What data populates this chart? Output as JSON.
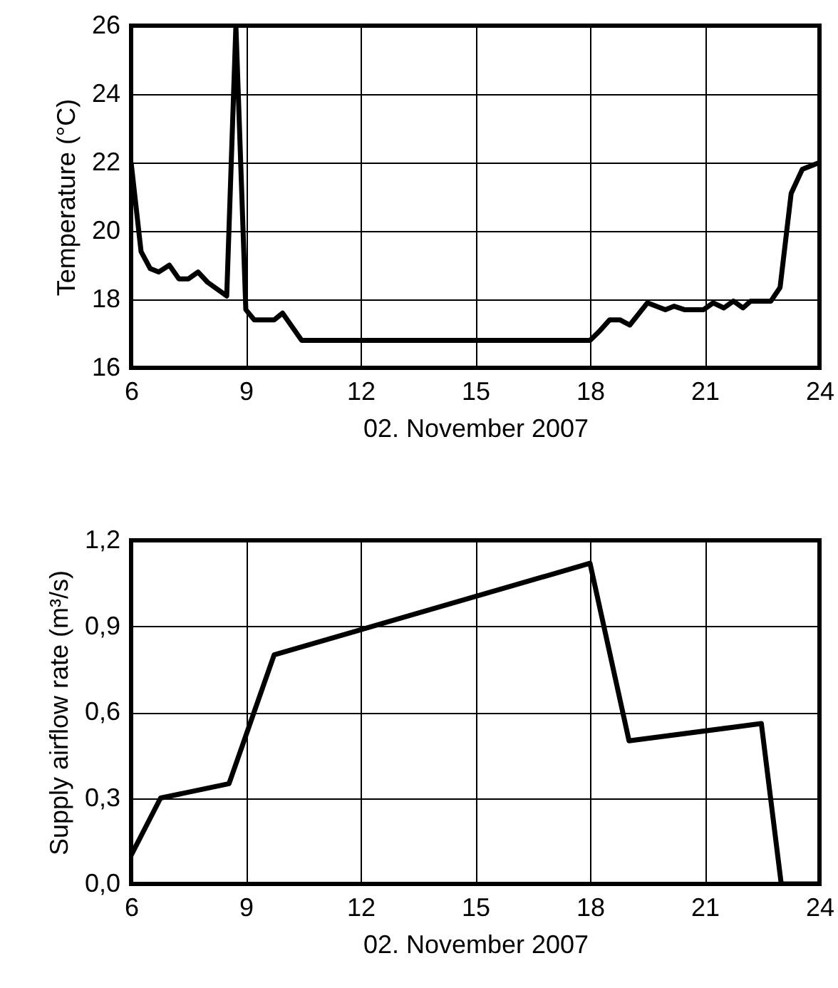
{
  "chart_data": [
    {
      "type": "line",
      "xlabel": "02. November 2007",
      "ylabel": "Temperature (°C)",
      "x": [
        6,
        6.26,
        6.5,
        6.72,
        7,
        7.25,
        7.5,
        7.75,
        8,
        8.5,
        8.74,
        9,
        9.22,
        9.74,
        9.96,
        10.46,
        18,
        18.23,
        18.51,
        18.79,
        19.04,
        19.5,
        19.97,
        20.2,
        20.47,
        20.97,
        21.22,
        21.5,
        21.75,
        22,
        22.2,
        22.73,
        22.97,
        23.26,
        23.55,
        24
      ],
      "series": [
        {
          "color": "#000000",
          "values": [
            22,
            19.4,
            18.9,
            18.8,
            19,
            18.6,
            18.6,
            18.8,
            18.5,
            18.1,
            26,
            17.7,
            17.4,
            17.4,
            17.6,
            16.8,
            16.8,
            17.05,
            17.4,
            17.4,
            17.25,
            17.9,
            17.7,
            17.8,
            17.7,
            17.7,
            17.9,
            17.75,
            17.95,
            17.75,
            17.95,
            17.95,
            18.35,
            21.1,
            21.8,
            22
          ]
        }
      ],
      "xlim": [
        6,
        24
      ],
      "xticks": [
        6,
        9,
        12,
        15,
        18,
        21,
        24
      ],
      "ylim": [
        16,
        26
      ],
      "yticks": [
        16,
        18,
        20,
        22,
        24,
        26
      ],
      "grid": true
    },
    {
      "type": "line",
      "xlabel": "02. November 2007",
      "ylabel": "Supply airflow rate (m³/s)",
      "x": [
        6,
        6.77,
        8.56,
        9.74,
        18,
        19.02,
        22.48,
        23,
        24
      ],
      "series": [
        {
          "color": "#000000",
          "values": [
            0.1,
            0.3,
            0.35,
            0.8,
            1.12,
            0.5,
            0.56,
            0,
            0
          ]
        }
      ],
      "xlim": [
        6,
        24
      ],
      "xticks": [
        6,
        9,
        12,
        15,
        18,
        21,
        24
      ],
      "ylim": [
        0,
        1.2
      ],
      "yticks": [
        {
          "value": 0,
          "label": "0,0"
        },
        {
          "value": 0.3,
          "label": "0,3"
        },
        {
          "value": 0.6,
          "label": "0,6"
        },
        {
          "value": 0.9,
          "label": "0,9"
        },
        {
          "value": 1.2,
          "label": "1,2"
        }
      ],
      "grid": true
    }
  ]
}
